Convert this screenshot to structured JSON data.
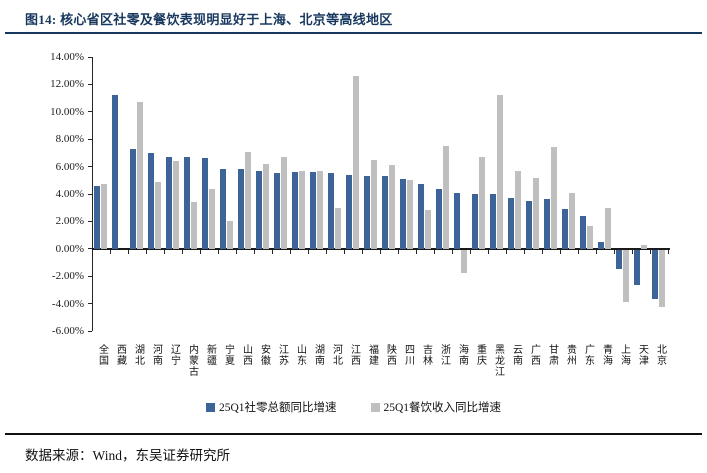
{
  "title": "图14:  核心省区社零及餐饮表现明显好于上海、北京等高线地区",
  "footer": {
    "source_label": "数据来源：Wind，东吴证券研究所"
  },
  "colors": {
    "retail_blue": "#3D6499",
    "catering_gray": "#BFBFBF",
    "title_navy": "#17375E",
    "axis_black": "#1a1a1a"
  },
  "chart_data": {
    "type": "bar",
    "title": "",
    "xlabel": "",
    "ylabel": "",
    "ylim": [
      -6,
      14
    ],
    "ytick_step": 2,
    "ytick_labels": [
      "14.00%",
      "12.00%",
      "10.00%",
      "8.00%",
      "6.00%",
      "4.00%",
      "2.00%",
      "0.00%",
      "-2.00%",
      "-4.00%",
      "-6.00%"
    ],
    "grid": false,
    "legend_position": "bottom",
    "categories": [
      "全国",
      "西藏",
      "湖北",
      "河南",
      "辽宁",
      "内蒙古",
      "新疆",
      "宁夏",
      "山西",
      "安徽",
      "江苏",
      "山东",
      "湖南",
      "河北",
      "江西",
      "福建",
      "陕西",
      "四川",
      "吉林",
      "浙江",
      "海南",
      "重庆",
      "黑龙江",
      "云南",
      "广西",
      "甘肃",
      "贵州",
      "广东",
      "青海",
      "上海",
      "天津",
      "北京"
    ],
    "series": [
      {
        "name": "25Q1社零总额同比增速",
        "color_key": "retail_blue",
        "values": [
          4.6,
          11.2,
          7.3,
          7.0,
          6.7,
          6.7,
          6.6,
          5.8,
          5.8,
          5.7,
          5.5,
          5.6,
          5.6,
          5.5,
          5.4,
          5.3,
          5.3,
          5.1,
          4.7,
          4.4,
          4.1,
          4.0,
          4.0,
          3.7,
          3.5,
          3.6,
          2.9,
          2.4,
          0.5,
          -1.4,
          -2.6,
          -3.6
        ]
      },
      {
        "name": "25Q1餐饮收入同比增速",
        "color_key": "catering_gray",
        "values": [
          4.7,
          null,
          10.7,
          4.9,
          6.4,
          3.4,
          4.4,
          2.0,
          7.1,
          6.2,
          6.7,
          5.7,
          5.7,
          3.0,
          12.6,
          6.5,
          6.1,
          5.0,
          2.8,
          7.5,
          -1.7,
          6.7,
          11.2,
          5.7,
          5.2,
          7.4,
          4.1,
          1.7,
          3.0,
          -3.8,
          0.3,
          -4.2
        ]
      }
    ]
  }
}
